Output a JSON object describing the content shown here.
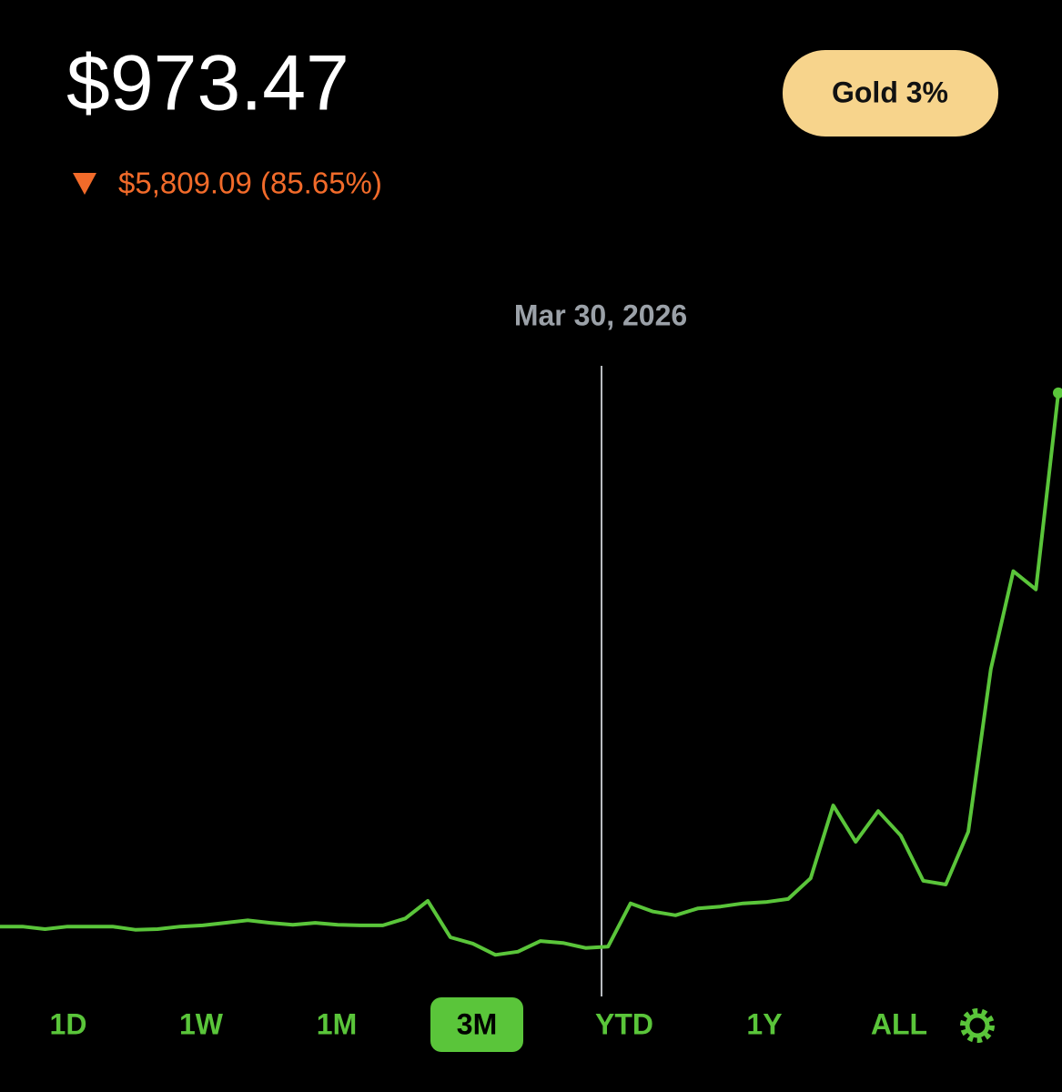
{
  "header": {
    "price": "$973.47",
    "change": "$5,809.09 (85.65%)",
    "badge": "Gold 3%"
  },
  "tooltip_date": "Mar 30, 2026",
  "ranges": [
    "1D",
    "1W",
    "1M",
    "3M",
    "YTD",
    "1Y",
    "ALL"
  ],
  "active_range": "3M",
  "chart_data": {
    "type": "line",
    "color": "#5ac53a",
    "ylim": [
      0,
      100
    ],
    "values": [
      10.4,
      10.4,
      10.0,
      10.4,
      10.4,
      10.4,
      9.9,
      10.0,
      10.4,
      10.6,
      11.0,
      11.4,
      11.0,
      10.7,
      11.0,
      10.7,
      10.6,
      10.6,
      11.7,
      14.5,
      8.7,
      7.7,
      5.9,
      6.4,
      8.1,
      7.8,
      7.0,
      7.2,
      14.1,
      12.8,
      12.2,
      13.3,
      13.6,
      14.1,
      14.3,
      14.8,
      18.1,
      29.7,
      23.9,
      28.8,
      24.9,
      17.7,
      17.1,
      25.5,
      51.4,
      67.0,
      64.1,
      95.4
    ]
  }
}
